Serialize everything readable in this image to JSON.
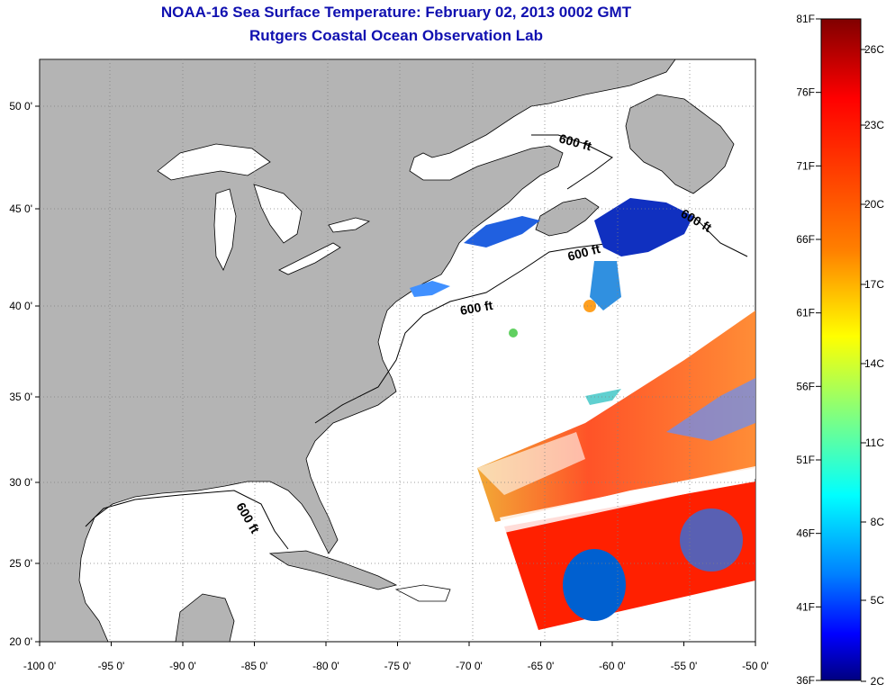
{
  "title": "NOAA-16 Sea Surface Temperature:  February 02, 2013 0002 GMT",
  "subtitle": "Rutgers Coastal Ocean Observation Lab",
  "lon_ticks": [
    "-100 0'",
    "-95 0'",
    "-90 0'",
    "-85 0'",
    "-80 0'",
    "-75 0'",
    "-70 0'",
    "-65 0'",
    "-60 0'",
    "-55 0'",
    "-50 0'"
  ],
  "lat_ticks": [
    "50 0'",
    "45 0'",
    "40 0'",
    "35 0'",
    "30 0'",
    "25 0'",
    "20 0'"
  ],
  "contour_label": "600 ft",
  "colorbar": {
    "fahrenheit": [
      "81F",
      "76F",
      "71F",
      "66F",
      "61F",
      "56F",
      "51F",
      "46F",
      "41F",
      "36F"
    ],
    "celsius": [
      "26C",
      "23C",
      "20C",
      "17C",
      "14C",
      "11C",
      "8C",
      "5C",
      "2C"
    ]
  },
  "colors": {
    "title": "#1010b0",
    "land": "#b4b4b4",
    "ocean": "#ffffff",
    "grid": "#808080",
    "colorbar_stops": [
      "#800000",
      "#ff0000",
      "#ff8000",
      "#ffff00",
      "#80ff80",
      "#00ffff",
      "#0080ff",
      "#0000ff",
      "#000080"
    ]
  }
}
